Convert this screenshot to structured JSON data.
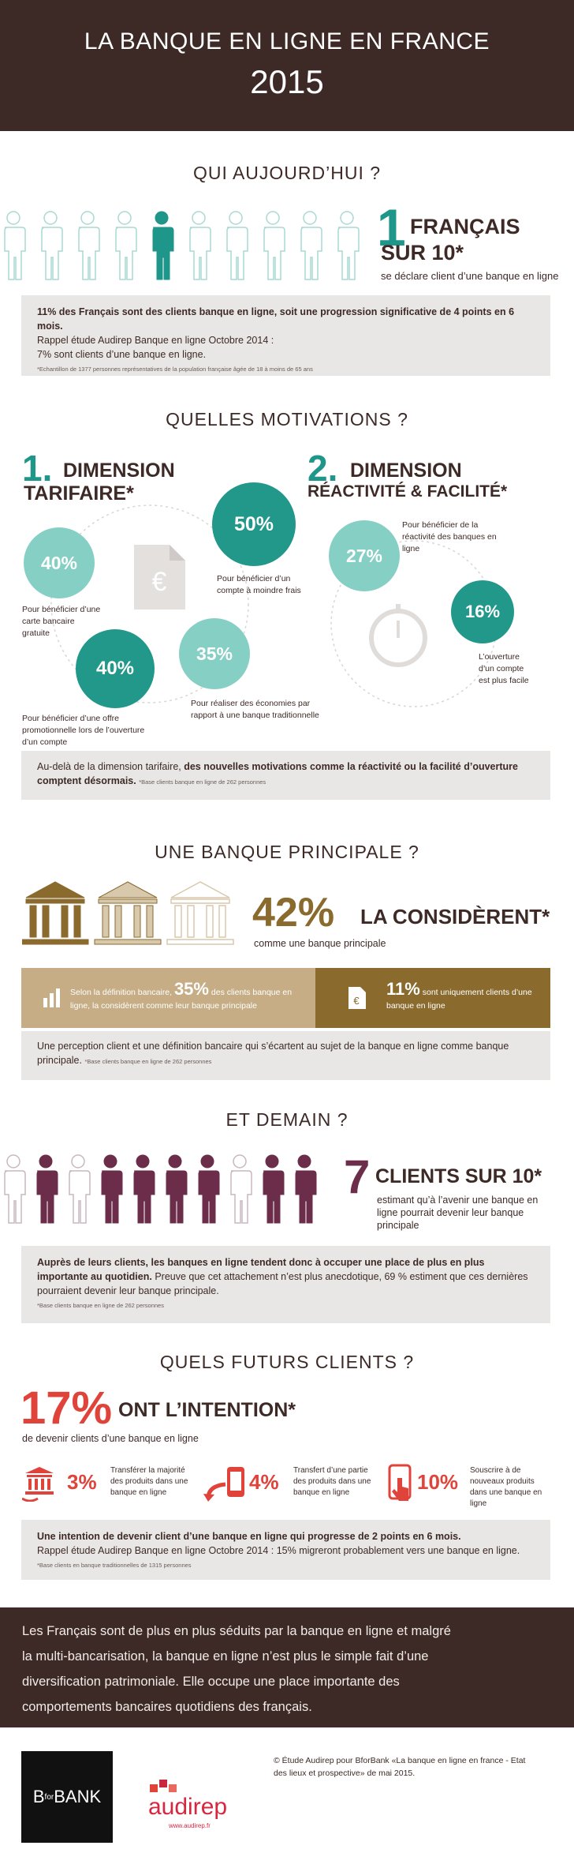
{
  "header": {
    "title": "LA BANQUE EN LIGNE EN FRANCE",
    "year": "2015"
  },
  "today": {
    "heading": "QUI AUJOURD’HUI ?",
    "stat_number": "1",
    "stat_line1": "FRANÇAIS",
    "stat_line2": "SUR 10*",
    "stat_caption": "se déclare client d’une banque en ligne",
    "box": {
      "line1": "11% des Français sont des clients banque en ligne, soit une progression significative de 4 points en 6 mois.",
      "line2": "Rappel étude Audirep Banque en ligne Octobre 2014 :",
      "line3": "7% sont clients d’une banque en ligne.",
      "note": "*Echantillon de 1377 personnes représentatives de la population française âgée de 18 à moins de 65 ans"
    }
  },
  "motivations": {
    "heading": "QUELLES MOTIVATIONS ?",
    "tariff": {
      "number": "1.",
      "title_line1": "DIMENSION",
      "title_line2": "TARIFAIRE*",
      "items": [
        {
          "value": "50%",
          "label": "Pour bénéficier d’un compte à moindre frais"
        },
        {
          "value": "40%",
          "label": "Pour bénéficier d’une carte bancaire gratuite"
        },
        {
          "value": "40%",
          "label": "Pour bénéficier d’une offre promotionnelle lors de l’ouverture d’un compte"
        },
        {
          "value": "35%",
          "label": "Pour réaliser des économies par rapport à une banque traditionnelle"
        }
      ]
    },
    "reactivity": {
      "number": "2.",
      "title_line1": "DIMENSION",
      "title_line2": "RÉACTIVITÉ & FACILITÉ*",
      "items": [
        {
          "value": "27%",
          "label": "Pour bénéficier de la réactivité des banques en ligne"
        },
        {
          "value": "16%",
          "label": "L’ouverture d’un compte est plus facile"
        }
      ]
    },
    "box": {
      "text": "Au-delà de la dimension tarifaire, ",
      "bold": "des nouvelles motivations comme la réactivité ou la facilité d’ouverture comptent désormais.",
      "note": "*Base clients banque en ligne de 262 personnes"
    }
  },
  "principal": {
    "heading": "UNE BANQUE PRINCIPALE ?",
    "percent": "42%",
    "title": "LA CONSIDÈRENT*",
    "caption": "comme une banque principale",
    "left": {
      "text_before": "Selon la définition bancaire,",
      "value": "35%",
      "text_after": "des clients banque en ligne, la considèrent comme leur banque principale"
    },
    "right": {
      "value": "11%",
      "text": "sont uniquement clients d’une banque en ligne"
    },
    "box": {
      "text": "Une perception client et une définition bancaire qui s’écartent au sujet de la banque en ligne comme banque principale.",
      "note": "*Base clients banque en ligne de 262 personnes"
    }
  },
  "tomorrow": {
    "heading": "ET DEMAIN ?",
    "number": "7",
    "title": "CLIENTS SUR 10*",
    "caption": "estimant qu’à l’avenir une banque en ligne pourrait devenir leur banque principale",
    "box": {
      "bold": "Auprès de leurs clients, les banques en ligne tendent donc à occuper une place de plus en plus importante au quotidien.",
      "text": " Preuve que cet attachement n’est plus anecdotique, 69 % estiment que ces dernières pourraient devenir leur banque principale.",
      "note": "*Base clients banque en ligne de 262 personnes"
    }
  },
  "future": {
    "heading": "QUELS FUTURS CLIENTS ?",
    "percent": "17%",
    "title": "ONT L’INTENTION*",
    "caption": "de devenir clients d’une banque en ligne",
    "items": [
      {
        "value": "3%",
        "label": "Transférer la majorité des produits dans une banque en ligne"
      },
      {
        "value": "4%",
        "label": "Transfert d’une partie des produits dans une banque en ligne"
      },
      {
        "value": "10%",
        "label": "Souscrire à de nouveaux produits dans une banque en ligne"
      }
    ],
    "box": {
      "bold": "Une intention de devenir client d’une banque en ligne qui progresse de 2 points en 6 mois.",
      "text": "Rappel étude Audirep Banque en ligne Octobre 2014 : 15% migreront probablement vers une banque en ligne.",
      "note": "*Base clients en banque traditionnelles de 1315 personnes"
    }
  },
  "conclusion": {
    "lines": [
      "Les Français sont de plus en plus séduits par la banque en ligne et malgré",
      "la multi-bancarisation, la banque en ligne n’est plus le simple fait d’une",
      "diversification patrimoniale. Elle occupe une place importante des",
      "comportements bancaires quotidiens des français."
    ]
  },
  "footer": {
    "bforbank": {
      "b": "B",
      "for": "for",
      "bank": "BANK"
    },
    "audirep": {
      "name": "audirep",
      "url": "www.audirep.fr"
    },
    "credit": "© Étude Audirep pour BforBank «La banque en ligne en france - Etat des lieux et prospective» de mai 2015."
  }
}
